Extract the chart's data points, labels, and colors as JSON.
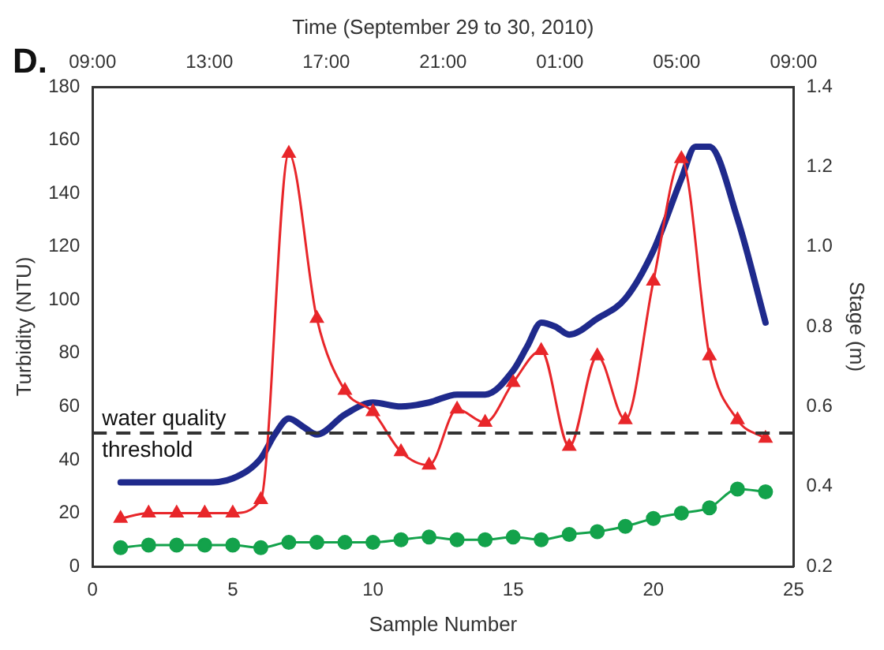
{
  "chart_data": {
    "type": "line",
    "title": "D.",
    "xlabel": "Sample Number",
    "ylabel": "Turbidity (NTU)",
    "y2label": "Stage (m)",
    "x2label": "Time (September 29 to 30, 2010)",
    "x": [
      1,
      2,
      3,
      4,
      5,
      6,
      7,
      8,
      9,
      10,
      11,
      12,
      13,
      14,
      15,
      16,
      17,
      18,
      19,
      20,
      21,
      22,
      23,
      24
    ],
    "series": [
      {
        "color": "#e8262a",
        "marker": "triangle",
        "values": [
          18,
          20,
          20,
          20,
          20,
          25,
          155,
          93,
          66,
          58,
          43,
          38,
          59,
          54,
          69,
          81,
          45,
          79,
          55,
          107,
          153,
          79,
          55,
          48
        ]
      },
      {
        "color": "#13a24b",
        "marker": "circle",
        "values": [
          7,
          8,
          8,
          8,
          8,
          7,
          9,
          9,
          9,
          9,
          10,
          11,
          10,
          10,
          11,
          10,
          12,
          13,
          15,
          18,
          20,
          22,
          29,
          28
        ]
      },
      {
        "color": "#1f2a8c",
        "marker": "none",
        "axis": "y2",
        "x": [
          1,
          2,
          3,
          4,
          5,
          6,
          6.5,
          7,
          7.5,
          8,
          9,
          10,
          11,
          12,
          13,
          14,
          15,
          15.5,
          16,
          16.5,
          17,
          18,
          19,
          20,
          21,
          21.5,
          22,
          23,
          24
        ],
        "values": [
          0.41,
          0.41,
          0.41,
          0.41,
          0.42,
          0.47,
          0.53,
          0.57,
          0.55,
          0.53,
          0.58,
          0.61,
          0.6,
          0.61,
          0.63,
          0.63,
          0.69,
          0.75,
          0.81,
          0.8,
          0.78,
          0.82,
          0.87,
          0.99,
          1.17,
          1.25,
          1.25,
          1.07,
          0.81
        ]
      }
    ],
    "xlim": [
      0,
      25
    ],
    "xticks": [
      0,
      5,
      10,
      15,
      20,
      25
    ],
    "ylim": [
      0,
      180
    ],
    "yticks": [
      0,
      20,
      40,
      60,
      80,
      100,
      120,
      140,
      160,
      180
    ],
    "y2lim": [
      0.2,
      1.4
    ],
    "y2ticks": [
      0.2,
      0.4,
      0.6,
      0.8,
      {
        "value": 1,
        "label": "1.0"
      },
      1.2,
      1.4
    ],
    "x2lim": [
      "2010-09-29T09:00",
      "2010-09-30T09:00"
    ],
    "x2ticks": [
      {
        "value": "2010-09-29T09:00",
        "label": "09:00"
      },
      {
        "value": "2010-09-29T13:00",
        "label": "13:00"
      },
      {
        "value": "2010-09-29T17:00",
        "label": "17:00"
      },
      {
        "value": "2010-09-29T21:00",
        "label": "21:00"
      },
      {
        "value": "2010-09-30T01:00",
        "label": "01:00"
      },
      {
        "value": "2010-09-30T05:00",
        "label": "05:00"
      },
      {
        "value": "2010-09-30T09:00",
        "label": "09:00"
      }
    ],
    "ref_lines": [
      {
        "axis": "y",
        "value": 50,
        "label": "water quality threshold",
        "line_style": "dashed",
        "color": "#333333"
      }
    ],
    "grid": false,
    "legend": false
  }
}
